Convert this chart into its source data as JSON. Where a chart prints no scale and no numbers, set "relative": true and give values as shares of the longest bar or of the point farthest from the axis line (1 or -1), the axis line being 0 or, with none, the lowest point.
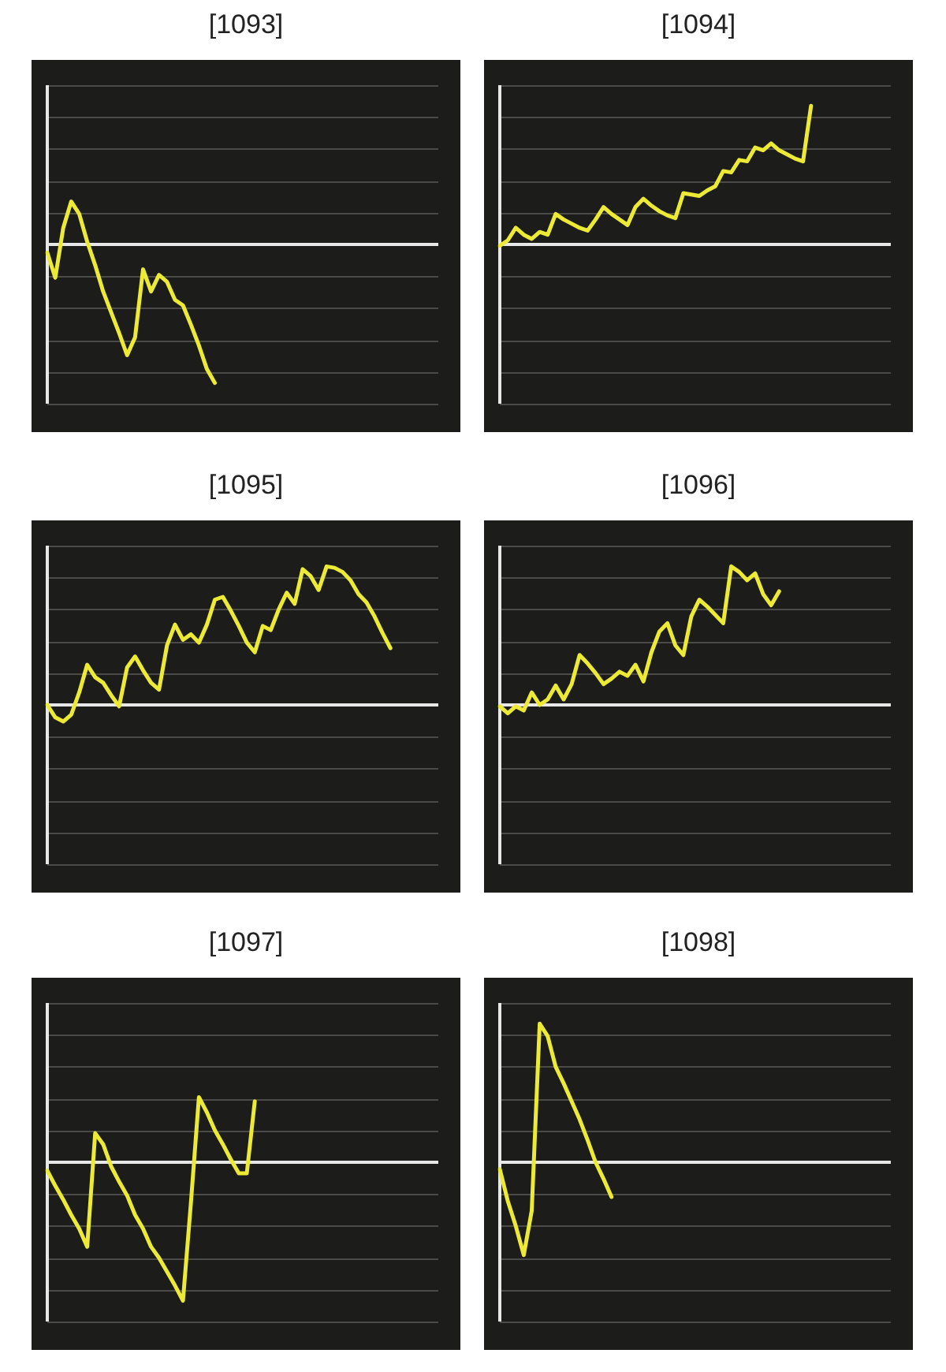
{
  "chart_data": [
    {
      "type": "line",
      "title": "[1093]",
      "relative": true,
      "grid": "y",
      "color": "#ecea35",
      "categories": [
        null,
        null,
        null,
        null,
        null,
        null,
        null,
        null,
        null,
        null,
        null,
        null,
        null,
        null,
        null,
        null,
        null,
        null,
        null,
        null,
        null,
        null,
        null,
        null,
        null,
        null,
        null,
        null,
        null,
        null,
        null,
        null,
        null,
        null,
        null,
        null,
        null,
        null,
        null,
        null,
        null,
        null,
        null,
        null,
        null,
        null,
        null,
        null,
        null,
        null
      ],
      "values": [
        -0.06,
        -0.24,
        0.12,
        0.31,
        0.22,
        0.02,
        -0.15,
        -0.34,
        -0.49,
        -0.64,
        -0.8,
        -0.67,
        -0.18,
        -0.34,
        -0.22,
        -0.27,
        -0.4,
        -0.44,
        -0.58,
        -0.73,
        -0.9,
        -1,
        null,
        null,
        null,
        null,
        null,
        null,
        null,
        null,
        null,
        null,
        null,
        null,
        null,
        null,
        null,
        null,
        null,
        null,
        null,
        null,
        null,
        null,
        null,
        null,
        null,
        null,
        null,
        null
      ]
    },
    {
      "type": "line",
      "title": "[1094]",
      "relative": true,
      "grid": "y",
      "color": "#ecea35",
      "categories": [
        null,
        null,
        null,
        null,
        null,
        null,
        null,
        null,
        null,
        null,
        null,
        null,
        null,
        null,
        null,
        null,
        null,
        null,
        null,
        null,
        null,
        null,
        null,
        null,
        null,
        null,
        null,
        null,
        null,
        null,
        null,
        null,
        null,
        null,
        null,
        null,
        null,
        null,
        null,
        null,
        null,
        null,
        null,
        null,
        null,
        null,
        null,
        null,
        null,
        null
      ],
      "values": [
        -0.01,
        0.03,
        0.12,
        0.07,
        0.04,
        0.09,
        0.07,
        0.22,
        0.18,
        0.15,
        0.12,
        0.1,
        0.18,
        0.27,
        0.22,
        0.18,
        0.14,
        0.27,
        0.33,
        0.28,
        0.24,
        0.21,
        0.19,
        0.37,
        0.36,
        0.35,
        0.39,
        0.42,
        0.53,
        0.52,
        0.61,
        0.6,
        0.7,
        0.68,
        0.73,
        0.68,
        0.65,
        0.62,
        0.6,
        1,
        null,
        null,
        null,
        null,
        null,
        null,
        null,
        null,
        null,
        null
      ]
    },
    {
      "type": "line",
      "title": "[1095]",
      "relative": true,
      "grid": "y",
      "color": "#ecea35",
      "categories": [
        null,
        null,
        null,
        null,
        null,
        null,
        null,
        null,
        null,
        null,
        null,
        null,
        null,
        null,
        null,
        null,
        null,
        null,
        null,
        null,
        null,
        null,
        null,
        null,
        null,
        null,
        null,
        null,
        null,
        null,
        null,
        null,
        null,
        null,
        null,
        null,
        null,
        null,
        null,
        null,
        null,
        null,
        null,
        null,
        null,
        null,
        null,
        null,
        null,
        null
      ],
      "values": [
        0,
        -0.09,
        -0.12,
        -0.07,
        0.09,
        0.29,
        0.2,
        0.16,
        0.07,
        -0.01,
        0.27,
        0.35,
        0.25,
        0.16,
        0.11,
        0.43,
        0.58,
        0.47,
        0.51,
        0.45,
        0.58,
        0.76,
        0.78,
        0.68,
        0.57,
        0.45,
        0.38,
        0.57,
        0.54,
        0.69,
        0.81,
        0.73,
        0.98,
        0.93,
        0.83,
        1,
        0.99,
        0.96,
        0.9,
        0.8,
        0.74,
        0.64,
        0.52,
        0.41,
        null,
        null,
        null,
        null,
        null,
        null
      ]
    },
    {
      "type": "line",
      "title": "[1096]",
      "relative": true,
      "grid": "y",
      "color": "#ecea35",
      "categories": [
        null,
        null,
        null,
        null,
        null,
        null,
        null,
        null,
        null,
        null,
        null,
        null,
        null,
        null,
        null,
        null,
        null,
        null,
        null,
        null,
        null,
        null,
        null,
        null,
        null,
        null,
        null,
        null,
        null,
        null,
        null,
        null,
        null,
        null,
        null,
        null,
        null,
        null,
        null,
        null,
        null,
        null,
        null,
        null,
        null,
        null,
        null,
        null,
        null,
        null
      ],
      "values": [
        -0.01,
        -0.06,
        -0.01,
        -0.04,
        0.09,
        0,
        0.04,
        0.14,
        0.04,
        0.15,
        0.36,
        0.3,
        0.23,
        0.15,
        0.19,
        0.24,
        0.21,
        0.29,
        0.17,
        0.38,
        0.53,
        0.59,
        0.43,
        0.36,
        0.64,
        0.76,
        0.71,
        0.65,
        0.59,
        1,
        0.96,
        0.9,
        0.95,
        0.8,
        0.72,
        0.82,
        null,
        null,
        null,
        null,
        null,
        null,
        null,
        null,
        null,
        null,
        null,
        null,
        null,
        null
      ]
    },
    {
      "type": "line",
      "title": "[1097]",
      "relative": true,
      "grid": "y",
      "color": "#ecea35",
      "categories": [
        null,
        null,
        null,
        null,
        null,
        null,
        null,
        null,
        null,
        null,
        null,
        null,
        null,
        null,
        null,
        null,
        null,
        null,
        null,
        null,
        null,
        null,
        null,
        null,
        null,
        null,
        null,
        null,
        null,
        null,
        null,
        null,
        null,
        null,
        null,
        null,
        null,
        null,
        null,
        null,
        null,
        null,
        null,
        null,
        null,
        null,
        null,
        null,
        null,
        null
      ],
      "values": [
        -0.06,
        -0.17,
        -0.27,
        -0.38,
        -0.48,
        -0.61,
        0.21,
        0.13,
        -0.03,
        -0.14,
        -0.24,
        -0.38,
        -0.48,
        -0.61,
        -0.69,
        -0.79,
        -0.89,
        -1,
        -0.29,
        0.47,
        0.36,
        0.23,
        0.13,
        0.02,
        -0.08,
        -0.08,
        0.44,
        null,
        null,
        null,
        null,
        null,
        null,
        null,
        null,
        null,
        null,
        null,
        null,
        null,
        null,
        null,
        null,
        null,
        null,
        null,
        null,
        null,
        null,
        null
      ]
    },
    {
      "type": "line",
      "title": "[1098]",
      "relative": true,
      "grid": "y",
      "color": "#ecea35",
      "categories": [
        null,
        null,
        null,
        null,
        null,
        null,
        null,
        null,
        null,
        null,
        null,
        null,
        null,
        null,
        null,
        null,
        null,
        null,
        null,
        null,
        null,
        null,
        null,
        null,
        null,
        null,
        null,
        null,
        null,
        null,
        null,
        null,
        null,
        null,
        null,
        null,
        null,
        null,
        null,
        null,
        null,
        null,
        null,
        null,
        null,
        null,
        null,
        null,
        null,
        null
      ],
      "values": [
        -0.05,
        -0.28,
        -0.46,
        -0.67,
        -0.35,
        1,
        0.91,
        0.69,
        0.57,
        0.44,
        0.31,
        0.16,
        0,
        -0.12,
        -0.25,
        null,
        null,
        null,
        null,
        null,
        null,
        null,
        null,
        null,
        null,
        null,
        null,
        null,
        null,
        null,
        null,
        null,
        null,
        null,
        null,
        null,
        null,
        null,
        null,
        null,
        null,
        null,
        null,
        null,
        null,
        null,
        null,
        null,
        null,
        null
      ]
    }
  ]
}
